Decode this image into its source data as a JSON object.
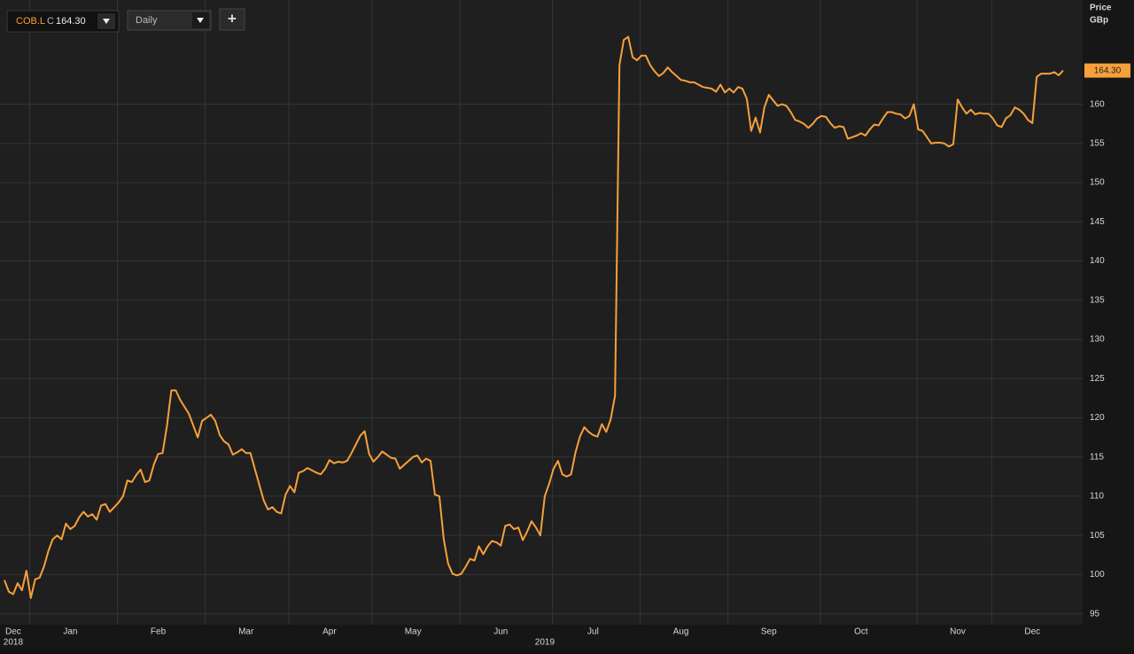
{
  "header": {
    "ticker": "COB.L",
    "close_prefix": "C",
    "close": "164.30",
    "interval": "Daily",
    "add_button": "+"
  },
  "chart_data": {
    "type": "line",
    "color": "#f7a03b",
    "grid": true,
    "y_axis_title": [
      "Price",
      "GBp"
    ],
    "ylim": [
      93.6,
      173.3
    ],
    "yticks": [
      95,
      100,
      105,
      110,
      115,
      120,
      125,
      130,
      135,
      140,
      145,
      150,
      155,
      160
    ],
    "last_label": {
      "value": 164.3,
      "label": "164.30"
    },
    "categories": [
      null,
      null,
      "Dec",
      null,
      null,
      null,
      null,
      null,
      null,
      null,
      null,
      null,
      null,
      null,
      null,
      "Jan",
      null,
      null,
      null,
      null,
      null,
      null,
      null,
      null,
      null,
      null,
      null,
      null,
      null,
      null,
      null,
      null,
      null,
      null,
      null,
      "Feb",
      null,
      null,
      null,
      null,
      null,
      null,
      null,
      null,
      null,
      null,
      null,
      null,
      null,
      null,
      null,
      null,
      null,
      null,
      null,
      "Mar",
      null,
      null,
      null,
      null,
      null,
      null,
      null,
      null,
      null,
      null,
      null,
      null,
      null,
      null,
      null,
      null,
      null,
      null,
      "Apr",
      null,
      null,
      null,
      null,
      null,
      null,
      null,
      null,
      null,
      null,
      null,
      null,
      null,
      null,
      null,
      null,
      null,
      null,
      "May",
      null,
      null,
      null,
      null,
      null,
      null,
      null,
      null,
      null,
      null,
      null,
      null,
      null,
      null,
      null,
      null,
      null,
      null,
      null,
      "Jun",
      null,
      null,
      null,
      null,
      null,
      null,
      null,
      null,
      null,
      null,
      null,
      null,
      null,
      null,
      null,
      null,
      null,
      null,
      null,
      null,
      "Jul",
      null,
      null,
      null,
      null,
      null,
      null,
      null,
      null,
      null,
      null,
      null,
      null,
      null,
      null,
      null,
      null,
      null,
      null,
      null,
      "Aug",
      null,
      null,
      null,
      null,
      null,
      null,
      null,
      null,
      null,
      null,
      null,
      null,
      null,
      null,
      null,
      null,
      null,
      null,
      null,
      "Sep",
      null,
      null,
      null,
      null,
      null,
      null,
      null,
      null,
      null,
      null,
      null,
      null,
      null,
      null,
      null,
      null,
      null,
      null,
      null,
      null,
      "Oct",
      null,
      null,
      null,
      null,
      null,
      null,
      null,
      null,
      null,
      null,
      null,
      null,
      null,
      null,
      null,
      null,
      null,
      null,
      null,
      null,
      null,
      "Nov",
      null,
      null,
      null,
      null,
      null,
      null,
      null,
      null,
      null,
      null,
      null,
      null,
      null,
      null,
      null,
      null,
      "Dec",
      null,
      null,
      null,
      null,
      null,
      null,
      null
    ],
    "category_years": [
      null,
      null,
      "2018",
      null,
      null,
      null,
      null,
      null,
      null,
      null,
      null,
      null,
      null,
      null,
      null,
      null,
      null,
      null,
      null,
      null,
      null,
      null,
      null,
      null,
      null,
      null,
      null,
      null,
      null,
      null,
      null,
      null,
      null,
      null,
      null,
      null,
      null,
      null,
      null,
      null,
      null,
      null,
      null,
      null,
      null,
      null,
      null,
      null,
      null,
      null,
      null,
      null,
      null,
      null,
      null,
      null,
      null,
      null,
      null,
      null,
      null,
      null,
      null,
      null,
      null,
      null,
      null,
      null,
      null,
      null,
      null,
      null,
      null,
      null,
      null,
      null,
      null,
      null,
      null,
      null,
      null,
      null,
      null,
      null,
      null,
      null,
      null,
      null,
      null,
      null,
      null,
      null,
      null,
      null,
      null,
      null,
      null,
      null,
      null,
      null,
      null,
      null,
      null,
      null,
      null,
      null,
      null,
      null,
      null,
      null,
      null,
      null,
      null,
      null,
      null,
      null,
      null,
      null,
      null,
      null,
      null,
      null,
      null,
      "2019",
      null,
      null,
      null,
      null,
      null,
      null,
      null,
      null,
      null,
      null,
      null,
      null,
      null,
      null,
      null,
      null,
      null,
      null,
      null,
      null,
      null,
      null,
      null,
      null,
      null,
      null,
      null,
      null,
      null,
      null,
      null,
      null,
      null,
      null,
      null,
      null,
      null,
      null,
      null,
      null,
      null,
      null,
      null,
      null,
      null,
      null,
      null,
      null,
      null,
      null,
      null,
      null,
      null,
      null,
      null,
      null,
      null,
      null,
      null,
      null,
      null,
      null,
      null,
      null,
      null,
      null,
      null,
      null,
      null,
      null,
      null,
      null,
      null,
      null,
      null,
      null,
      null,
      null,
      null,
      null,
      null,
      null,
      null,
      null,
      null,
      null,
      null,
      null,
      null,
      null,
      null,
      null,
      null,
      null,
      null,
      null,
      null,
      null,
      null,
      null,
      null,
      null,
      null,
      null,
      null,
      null,
      null,
      null,
      null,
      null,
      null,
      null,
      null,
      null,
      null,
      null,
      null,
      null
    ],
    "values": [
      99.3,
      97.8,
      97.5,
      98.9,
      98,
      100.5,
      97,
      99.4,
      99.6,
      101,
      103,
      104.5,
      105,
      104.5,
      106.5,
      105.8,
      106.2,
      107.3,
      108,
      107.4,
      107.7,
      107,
      108.8,
      109,
      108,
      108.6,
      109.2,
      110,
      112,
      111.8,
      112.7,
      113.4,
      111.8,
      112,
      114,
      115.4,
      115.5,
      119,
      123.5,
      123.5,
      122.3,
      121.4,
      120.5,
      119,
      117.5,
      119.6,
      120,
      120.4,
      119.6,
      117.8,
      117,
      116.6,
      115.3,
      115.6,
      116,
      115.5,
      115.5,
      113.5,
      111.5,
      109.5,
      108.3,
      108.6,
      108,
      107.8,
      110.2,
      111.3,
      110.5,
      113,
      113.2,
      113.6,
      113.3,
      113,
      112.8,
      113.5,
      114.6,
      114.2,
      114.4,
      114.3,
      114.5,
      115.5,
      116.6,
      117.7,
      118.3,
      115.4,
      114.4,
      115,
      115.7,
      115.3,
      114.9,
      114.8,
      113.5,
      114,
      114.5,
      115,
      115.2,
      114.3,
      114.8,
      114.5,
      110.2,
      110,
      104.5,
      101.4,
      100.1,
      99.9,
      100.1,
      101,
      102,
      101.8,
      103.6,
      102.6,
      103.6,
      104.3,
      104.1,
      103.7,
      106.2,
      106.4,
      105.8,
      106,
      104.4,
      105.5,
      106.8,
      106,
      105,
      110,
      111.6,
      113.5,
      114.5,
      112.8,
      112.5,
      112.8,
      115.6,
      117.6,
      118.8,
      118.2,
      117.8,
      117.6,
      119.2,
      118.2,
      119.8,
      122.8,
      165,
      168.2,
      168.6,
      166,
      165.6,
      166.2,
      166.2,
      165,
      164.2,
      163.6,
      164,
      164.7,
      164.1,
      163.6,
      163.1,
      163,
      162.8,
      162.8,
      162.5,
      162.2,
      162.1,
      162,
      161.6,
      162.5,
      161.5,
      162,
      161.5,
      162.2,
      162,
      160.7,
      156.6,
      158.3,
      156.4,
      159.6,
      161.2,
      160.5,
      159.8,
      160,
      159.8,
      159,
      158,
      157.8,
      157.5,
      157,
      157.5,
      158.2,
      158.5,
      158.4,
      157.6,
      157,
      157.2,
      157.1,
      155.6,
      155.8,
      156,
      156.3,
      156,
      156.8,
      157.4,
      157.3,
      158.2,
      159,
      159,
      158.8,
      158.7,
      158.2,
      158.5,
      160,
      156.8,
      156.6,
      155.8,
      155,
      155.1,
      155.1,
      155,
      154.6,
      154.9,
      160.6,
      159.6,
      158.8,
      159.3,
      158.7,
      158.9,
      158.8,
      158.8,
      158.2,
      157.3,
      157.1,
      158.2,
      158.6,
      159.6,
      159.3,
      158.8,
      158,
      157.6,
      163.5,
      163.9,
      163.9,
      163.9,
      164.1,
      163.7,
      164.3
    ]
  }
}
